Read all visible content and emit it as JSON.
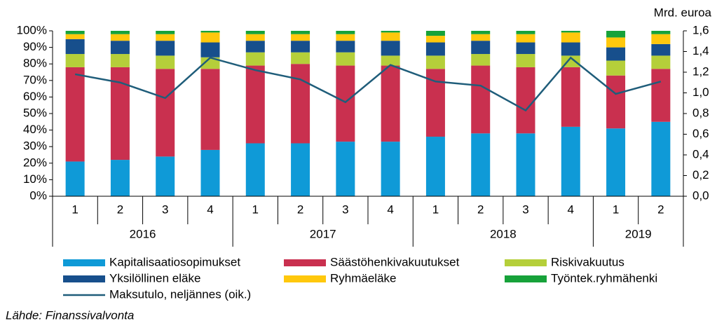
{
  "chart_data": {
    "type": "bar",
    "stacked": true,
    "y2_label": "Mrd. euroa",
    "source": "Lähde: Finanssivalvonta",
    "categories": [
      "1",
      "2",
      "3",
      "4",
      "1",
      "2",
      "3",
      "4",
      "1",
      "2",
      "3",
      "4",
      "1",
      "2"
    ],
    "x_groups": [
      {
        "label": "2016",
        "count": 4
      },
      {
        "label": "2017",
        "count": 4
      },
      {
        "label": "2018",
        "count": 4
      },
      {
        "label": "2019",
        "count": 2
      }
    ],
    "ylim": [
      0,
      100
    ],
    "yticks": [
      {
        "value": 0,
        "label": "0%"
      },
      {
        "value": 10,
        "label": "10%"
      },
      {
        "value": 20,
        "label": "20%"
      },
      {
        "value": 30,
        "label": "30%"
      },
      {
        "value": 40,
        "label": "40%"
      },
      {
        "value": 50,
        "label": "50%"
      },
      {
        "value": 60,
        "label": "60%"
      },
      {
        "value": 70,
        "label": "70%"
      },
      {
        "value": 80,
        "label": "80%"
      },
      {
        "value": 90,
        "label": "90%"
      },
      {
        "value": 100,
        "label": "100%"
      }
    ],
    "y2lim": [
      0,
      1.6
    ],
    "y2ticks": [
      {
        "value": 0,
        "label": "0,0"
      },
      {
        "value": 0.2,
        "label": "0,2"
      },
      {
        "value": 0.4,
        "label": "0,4"
      },
      {
        "value": 0.6,
        "label": "0,6"
      },
      {
        "value": 0.8,
        "label": "0,8"
      },
      {
        "value": 1.0,
        "label": "1,0"
      },
      {
        "value": 1.2,
        "label": "1,2"
      },
      {
        "value": 1.4,
        "label": "1,4"
      },
      {
        "value": 1.6,
        "label": "1,6"
      }
    ],
    "series": [
      {
        "name": "Kapitalisaatiosopimukset",
        "color": "#0f9ad7",
        "values": [
          21,
          22,
          24,
          28,
          32,
          32,
          33,
          33,
          36,
          38,
          38,
          42,
          41,
          45
        ]
      },
      {
        "name": "Säästöhenkivakuutukset",
        "color": "#c9304f",
        "values": [
          57,
          56,
          53,
          49,
          47,
          48,
          46,
          46,
          41,
          41,
          40,
          36,
          32,
          32
        ]
      },
      {
        "name": "Riskivakuutus",
        "color": "#b5cf3a",
        "values": [
          8,
          8,
          8,
          7,
          8,
          7,
          8,
          6,
          8,
          7,
          8,
          7,
          9,
          8
        ]
      },
      {
        "name": "Yksilöllinen eläke",
        "color": "#174f8c",
        "values": [
          9,
          8,
          9,
          9,
          7,
          7,
          7,
          9,
          8,
          8,
          7,
          8,
          8,
          7
        ]
      },
      {
        "name": "Ryhmäeläke",
        "color": "#ffc80c",
        "values": [
          3,
          4,
          4,
          6,
          4,
          4,
          4,
          5,
          4,
          4,
          5,
          6,
          6,
          6
        ]
      },
      {
        "name": "Työntek.ryhmähenki",
        "color": "#17a23a",
        "values": [
          2,
          2,
          2,
          1,
          2,
          2,
          2,
          1,
          3,
          2,
          2,
          1,
          4,
          2
        ]
      },
      {
        "name": "Maksutulo, neljännes (oik.)",
        "color": "#1f5d7a",
        "type": "line",
        "axis": "y2",
        "values": [
          1.18,
          1.1,
          0.95,
          1.34,
          1.22,
          1.13,
          0.91,
          1.27,
          1.11,
          1.07,
          0.83,
          1.34,
          0.99,
          1.11
        ]
      }
    ]
  }
}
